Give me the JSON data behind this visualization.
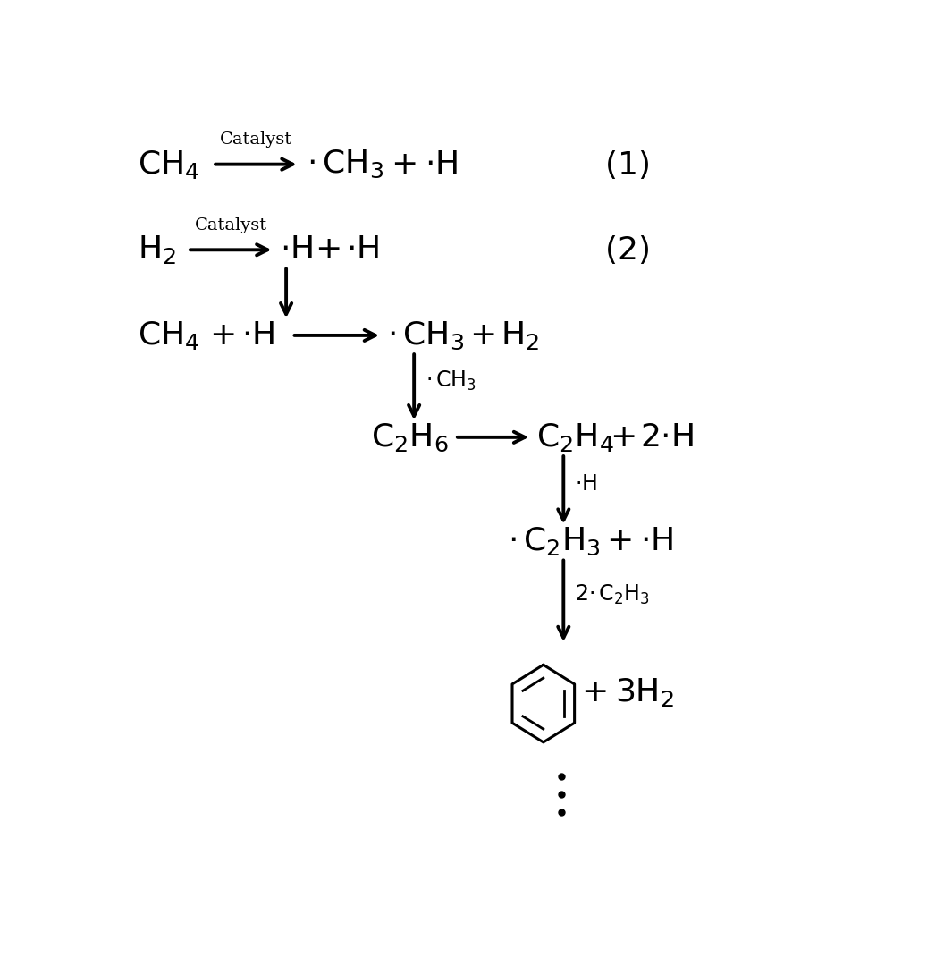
{
  "bg_color": "#ffffff",
  "text_color": "#000000",
  "fig_width": 10.37,
  "fig_height": 10.8,
  "dpi": 100,
  "fs_main": 26,
  "fs_catalyst": 14,
  "fs_side_label": 17
}
